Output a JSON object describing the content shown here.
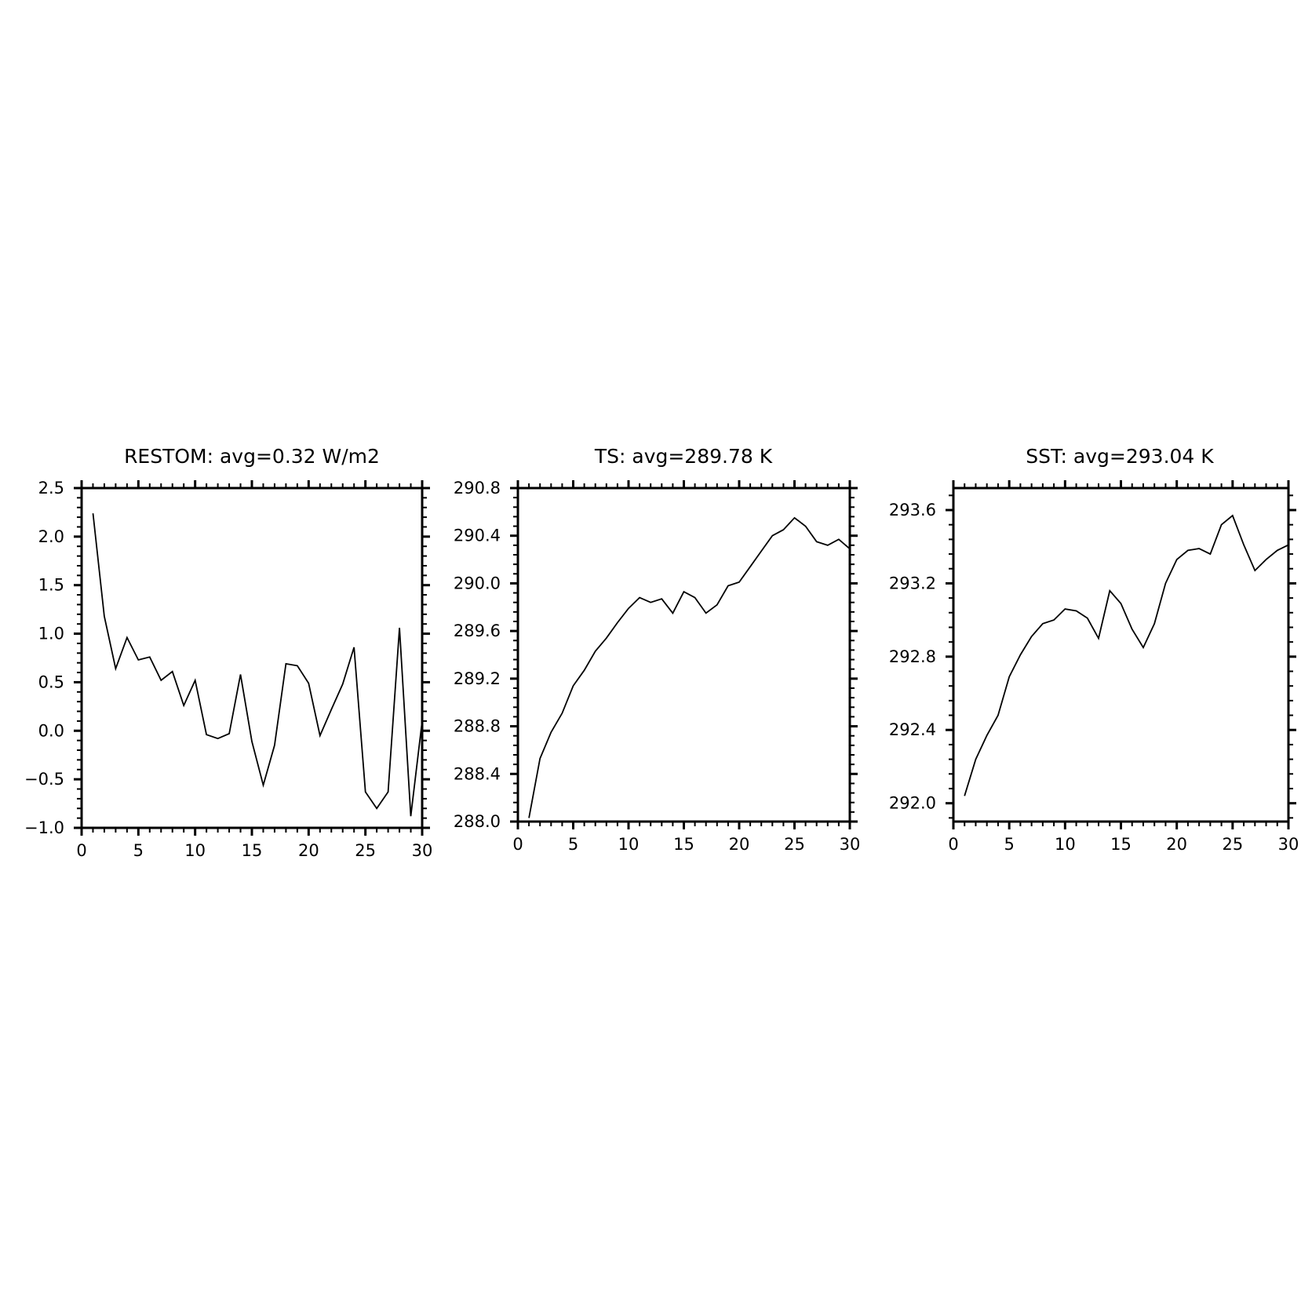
{
  "colors": {
    "background": "#ffffff",
    "line": "#000000",
    "axes": "#000000"
  },
  "chart_data": [
    {
      "type": "line",
      "title": "RESTOM: avg=0.32 W/m2",
      "xlabel": "",
      "ylabel": "",
      "xlim": [
        0,
        30
      ],
      "ylim": [
        -1.0,
        2.5
      ],
      "xticks": [
        "0",
        "5",
        "10",
        "15",
        "20",
        "25",
        "30"
      ],
      "yticks": [
        "2.5",
        "2.0",
        "1.5",
        "1.0",
        "0.5",
        "0.0",
        "−0.5",
        "−1.0"
      ],
      "ytick_labels_right": false,
      "grid": false,
      "x": [
        1,
        2,
        3,
        4,
        5,
        6,
        7,
        8,
        9,
        10,
        11,
        12,
        13,
        14,
        15,
        16,
        17,
        18,
        19,
        20,
        21,
        22,
        23,
        24,
        25,
        26,
        27,
        28,
        29,
        30
      ],
      "series": [
        {
          "values": [
            2.24,
            1.18,
            0.64,
            0.96,
            0.73,
            0.76,
            0.52,
            0.61,
            0.26,
            0.52,
            -0.04,
            -0.08,
            -0.03,
            0.58,
            -0.11,
            -0.56,
            -0.15,
            0.69,
            0.67,
            0.49,
            -0.05,
            0.22,
            0.48,
            0.86,
            -0.63,
            -0.8,
            -0.63,
            1.06,
            -0.88,
            0.1
          ]
        }
      ]
    },
    {
      "type": "line",
      "title": "TS: avg=289.78 K",
      "xlabel": "",
      "ylabel": "",
      "xlim": [
        0,
        30
      ],
      "ylim": [
        288.0,
        290.8
      ],
      "xticks": [
        "0",
        "5",
        "10",
        "15",
        "20",
        "25",
        "30"
      ],
      "yticks": [
        "290.8",
        "290.4",
        "290.0",
        "289.6",
        "289.2",
        "288.8",
        "288.4",
        "288.0"
      ],
      "ytick_labels_right": false,
      "grid": false,
      "x": [
        1,
        2,
        3,
        4,
        5,
        6,
        7,
        8,
        9,
        10,
        11,
        12,
        13,
        14,
        15,
        16,
        17,
        18,
        19,
        20,
        21,
        22,
        23,
        24,
        25,
        26,
        27,
        28,
        29,
        30
      ],
      "series": [
        {
          "values": [
            288.03,
            288.53,
            288.75,
            288.91,
            289.14,
            289.27,
            289.43,
            289.54,
            289.67,
            289.79,
            289.88,
            289.84,
            289.87,
            289.75,
            289.93,
            289.88,
            289.75,
            289.82,
            289.98,
            290.01,
            290.14,
            290.27,
            290.4,
            290.45,
            290.55,
            290.48,
            290.35,
            290.32,
            290.37,
            290.29
          ]
        }
      ]
    },
    {
      "type": "line",
      "title": "SST: avg=293.04 K",
      "xlabel": "",
      "ylabel": "",
      "xlim": [
        0,
        30
      ],
      "ylim": [
        291.9,
        293.72
      ],
      "xticks": [
        "0",
        "5",
        "10",
        "15",
        "20",
        "25",
        "30"
      ],
      "yticks": [
        "293.6",
        "293.2",
        "292.8",
        "292.4",
        "292.0"
      ],
      "ytick_labels_right": false,
      "grid": false,
      "x": [
        1,
        2,
        3,
        4,
        5,
        6,
        7,
        8,
        9,
        10,
        11,
        12,
        13,
        14,
        15,
        16,
        17,
        18,
        19,
        20,
        21,
        22,
        23,
        24,
        25,
        26,
        27,
        28,
        29,
        30
      ],
      "series": [
        {
          "values": [
            292.04,
            292.24,
            292.37,
            292.48,
            292.69,
            292.81,
            292.91,
            292.98,
            293.0,
            293.06,
            293.05,
            293.01,
            292.9,
            293.16,
            293.09,
            292.95,
            292.85,
            292.98,
            293.2,
            293.33,
            293.38,
            293.39,
            293.36,
            293.52,
            293.57,
            293.41,
            293.27,
            293.33,
            293.38,
            293.41
          ]
        }
      ]
    }
  ]
}
